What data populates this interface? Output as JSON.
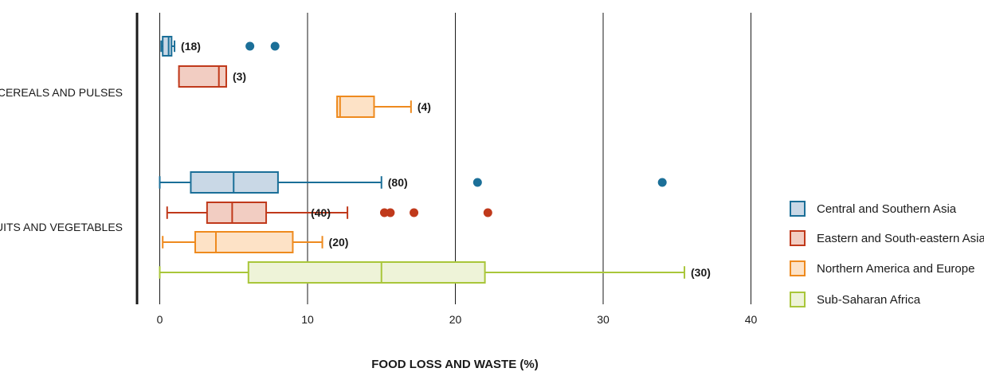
{
  "chart_data": {
    "type": "boxplot",
    "orientation": "horizontal",
    "xlabel": "FOOD LOSS AND WASTE (%)",
    "xlim": [
      0,
      40
    ],
    "xticks": [
      0,
      10,
      20,
      30,
      40
    ],
    "grid": "vertical",
    "legend_position": "right",
    "categories": [
      "CEREALS AND PULSES",
      "FRUITS AND VEGETABLES"
    ],
    "series": [
      {
        "name": "Central and Southern Asia",
        "color": "#1b6f98",
        "fill": "#c9d8e6",
        "boxes": [
          {
            "category": "CEREALS AND PULSES",
            "whisker_low": 0.1,
            "q1": 0.2,
            "median": 0.6,
            "q3": 0.8,
            "whisker_high": 1.0,
            "n": "(18)",
            "outliers": [
              6.1,
              7.8
            ]
          },
          {
            "category": "FRUITS AND VEGETABLES",
            "whisker_low": 0.0,
            "q1": 2.1,
            "median": 5.0,
            "q3": 8.0,
            "whisker_high": 15.0,
            "n": "(80)",
            "outliers": [
              21.5,
              34.0
            ]
          }
        ]
      },
      {
        "name": "Eastern and South-eastern Asia",
        "color": "#c0391b",
        "fill": "#f2cdc2",
        "boxes": [
          {
            "category": "CEREALS AND PULSES",
            "whisker_low": 1.3,
            "q1": 1.3,
            "median": 4.0,
            "q3": 4.5,
            "whisker_high": 4.5,
            "n": "(3)",
            "outliers": []
          },
          {
            "category": "FRUITS AND VEGETABLES",
            "whisker_low": 0.5,
            "q1": 3.2,
            "median": 4.9,
            "q3": 7.2,
            "whisker_high": 12.7,
            "n": "(40)",
            "outliers": [
              15.2,
              15.6,
              17.2,
              22.2
            ]
          }
        ]
      },
      {
        "name": "Northern America and Europe",
        "color": "#ee8a1e",
        "fill": "#fde2c6",
        "boxes": [
          {
            "category": "CEREALS AND PULSES",
            "whisker_low": 12.0,
            "q1": 12.0,
            "median": 12.2,
            "q3": 14.5,
            "whisker_high": 17.0,
            "n": "(4)",
            "outliers": []
          },
          {
            "category": "FRUITS AND VEGETABLES",
            "whisker_low": 0.2,
            "q1": 2.4,
            "median": 3.8,
            "q3": 9.0,
            "whisker_high": 11.0,
            "n": "(20)",
            "outliers": []
          }
        ]
      },
      {
        "name": "Sub-Saharan Africa",
        "color": "#a9c63a",
        "fill": "#eef3d8",
        "boxes": [
          {
            "category": "FRUITS AND VEGETABLES",
            "whisker_low": 0.0,
            "q1": 6.0,
            "median": 15.0,
            "q3": 22.0,
            "whisker_high": 35.5,
            "n": "(30)",
            "outliers": []
          }
        ]
      }
    ]
  }
}
